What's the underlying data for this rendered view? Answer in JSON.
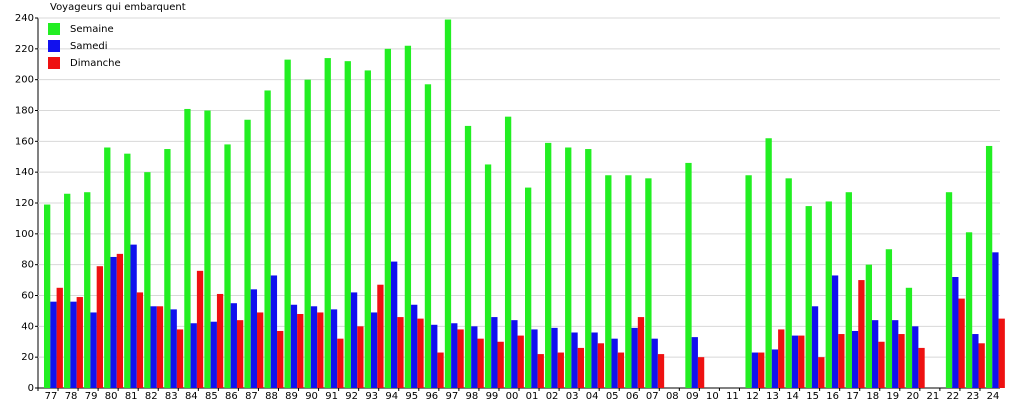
{
  "chart_data": {
    "type": "bar",
    "title": "Voyageurs qui embarquent",
    "categories": [
      "77",
      "78",
      "79",
      "80",
      "81",
      "82",
      "83",
      "84",
      "85",
      "86",
      "87",
      "88",
      "89",
      "90",
      "91",
      "92",
      "93",
      "94",
      "95",
      "96",
      "97",
      "98",
      "99",
      "00",
      "01",
      "02",
      "03",
      "04",
      "05",
      "06",
      "07",
      "08",
      "09",
      "10",
      "11",
      "12",
      "13",
      "14",
      "15",
      "16",
      "17",
      "18",
      "19",
      "20",
      "21",
      "22",
      "23",
      "24"
    ],
    "series": [
      {
        "name": "Semaine",
        "color": "#22ee22",
        "values": [
          119,
          126,
          127,
          156,
          152,
          140,
          155,
          181,
          180,
          158,
          174,
          193,
          213,
          200,
          214,
          212,
          206,
          220,
          222,
          197,
          239,
          170,
          145,
          176,
          130,
          159,
          156,
          155,
          138,
          138,
          136,
          null,
          146,
          null,
          null,
          138,
          162,
          136,
          118,
          121,
          127,
          80,
          90,
          65,
          null,
          127,
          101,
          157
        ]
      },
      {
        "name": "Samedi",
        "color": "#1111ee",
        "values": [
          56,
          56,
          49,
          85,
          93,
          53,
          51,
          42,
          43,
          55,
          64,
          73,
          54,
          53,
          51,
          62,
          49,
          82,
          54,
          41,
          42,
          40,
          46,
          44,
          38,
          39,
          36,
          36,
          32,
          39,
          32,
          null,
          33,
          null,
          null,
          23,
          25,
          34,
          53,
          73,
          37,
          44,
          44,
          40,
          null,
          72,
          35,
          88
        ]
      },
      {
        "name": "Dimanche",
        "color": "#ee1111",
        "values": [
          65,
          59,
          79,
          87,
          62,
          53,
          38,
          76,
          61,
          44,
          49,
          37,
          48,
          49,
          32,
          40,
          67,
          46,
          45,
          23,
          38,
          32,
          30,
          34,
          22,
          23,
          26,
          29,
          23,
          46,
          22,
          null,
          20,
          null,
          null,
          23,
          38,
          34,
          20,
          35,
          70,
          30,
          35,
          26,
          null,
          58,
          29,
          45
        ]
      }
    ],
    "ylim": [
      0,
      240
    ],
    "yticks": [
      0,
      20,
      40,
      60,
      80,
      100,
      120,
      140,
      160,
      180,
      200,
      220,
      240
    ],
    "grid": true,
    "legend": "top-left"
  }
}
